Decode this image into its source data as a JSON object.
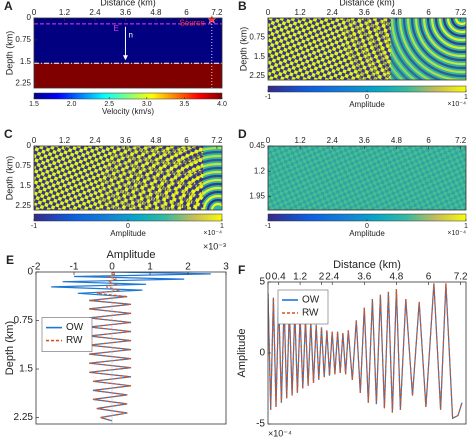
{
  "chart_data": [
    {
      "type": "heatmap",
      "panel_label": "A",
      "xlabel": "Distance (km)",
      "ylabel": "Depth (km)",
      "xlim": [
        0,
        7.4
      ],
      "xticks": [
        0,
        1.2,
        2.4,
        3.6,
        4.8,
        6,
        7.2
      ],
      "ylim": [
        0,
        2.4
      ],
      "yticks": [
        0,
        0.75,
        1.5,
        2.25
      ],
      "y_reversed": true,
      "layers": [
        {
          "top": 0,
          "bottom": 1.55,
          "velocity": 1.5
        },
        {
          "top": 1.55,
          "bottom": 2.4,
          "velocity": 4
        }
      ],
      "receiver_line_depth": 0.2,
      "receiver_line_label": "E",
      "normal_label": "n",
      "trace_x": 7.0,
      "source": {
        "label": "Source",
        "x": 7.0,
        "depth": 0.05
      },
      "colorbar": {
        "label": "Velocity (km/s)",
        "colormap": "jet",
        "clim": [
          1.5,
          4
        ],
        "ticks": [
          1.5,
          {
            "value": 2,
            "label": "2.0"
          },
          2.5,
          {
            "value": 3,
            "label": "3.0"
          },
          3.5,
          {
            "value": 4,
            "label": "4.0"
          }
        ]
      }
    },
    {
      "type": "wavefield",
      "panel_label": "B",
      "xlabel": "Distance (km)",
      "ylabel": "Depth (km)",
      "xlim": [
        0,
        7.4
      ],
      "xticks": [
        0,
        1.2,
        2.4,
        3.6,
        4.8,
        6,
        7.2
      ],
      "ylim": [
        0,
        2.4
      ],
      "yticks": [
        0.75,
        1.5,
        2.25
      ],
      "y_reversed": true,
      "colorbar": {
        "label": "Amplitude",
        "colormap": "parula",
        "clim": [
          -1,
          1
        ],
        "ticks": [
          -1,
          0,
          1
        ],
        "exponent_label": "×10⁻⁴"
      }
    },
    {
      "type": "wavefield",
      "panel_label": "C",
      "ylabel": "Depth (km)",
      "xlim": [
        0,
        7.4
      ],
      "xticks": [
        0,
        1.2,
        2.4,
        3.6,
        4.8,
        6,
        7.2
      ],
      "ylim": [
        0,
        2.4
      ],
      "yticks": [
        0,
        0.75,
        1.5,
        2.25
      ],
      "y_reversed": true,
      "colorbar": {
        "label": "Amplitude",
        "colormap": "parula",
        "clim": [
          -1,
          1
        ],
        "ticks": [
          -1,
          0,
          1
        ],
        "exponent_label": "×10⁻⁴"
      }
    },
    {
      "type": "wavefield",
      "panel_label": "D",
      "xlim": [
        0,
        7.4
      ],
      "xticks": [
        0,
        1.2,
        2.4,
        3.6,
        4.8,
        6,
        7.2
      ],
      "ylim": [
        0.45,
        2.35
      ],
      "yticks": [
        0.45,
        1.2,
        1.95
      ],
      "y_reversed": true,
      "colorbar": {
        "label": "Amplitude",
        "colormap": "parula",
        "clim": [
          -1,
          1
        ],
        "ticks": [
          -1,
          0,
          1
        ],
        "exponent_label": "×10⁻⁴"
      }
    },
    {
      "type": "depth_line",
      "panel_label": "E",
      "xlabel": "Amplitude",
      "ylabel": "Depth (km)",
      "exponent_label": "×10⁻³",
      "xlim": [
        -2,
        3
      ],
      "xticks": [
        -2,
        -1,
        0,
        1,
        2,
        3
      ],
      "ylim": [
        0,
        2.35
      ],
      "yticks": [
        0,
        0.75,
        1.5,
        2.25
      ],
      "y_reversed": true,
      "legend": "center left",
      "y": [
        0,
        0.03,
        0.07,
        0.11,
        0.15,
        0.19,
        0.23,
        0.28,
        0.33,
        0.38,
        0.44,
        0.5,
        0.57,
        0.64,
        0.71,
        0.78,
        0.85,
        0.92,
        0.99,
        1.06,
        1.13,
        1.2,
        1.27,
        1.34,
        1.41,
        1.48,
        1.55,
        1.62,
        1.69,
        1.76,
        1.83,
        1.9,
        1.97,
        2.04,
        2.11,
        2.18,
        2.25,
        2.3
      ],
      "series": [
        {
          "name": "OW",
          "color": "#1f77d4",
          "linestyle": "solid",
          "values": [
            0,
            2.6,
            -1.0,
            1.9,
            -1.3,
            0.9,
            -1.6,
            0.8,
            -0.9,
            0.4,
            -0.6,
            0.5,
            -0.6,
            0.5,
            -0.6,
            0.5,
            -0.6,
            0.5,
            -0.6,
            0.5,
            -0.6,
            0.5,
            -0.6,
            0.5,
            -0.6,
            0.5,
            -0.6,
            0.5,
            -0.5,
            0.5,
            -0.5,
            0.4,
            -0.5,
            0.4,
            -0.4,
            0.4,
            -0.3,
            0.0
          ]
        },
        {
          "name": "RW",
          "color": "#d9541a",
          "linestyle": "dashed",
          "values": [
            0,
            0.1,
            -0.1,
            0.1,
            -0.1,
            0.1,
            -0.15,
            0.2,
            -0.4,
            0.4,
            -0.6,
            0.5,
            -0.6,
            0.5,
            -0.6,
            0.5,
            -0.6,
            0.5,
            -0.6,
            0.5,
            -0.6,
            0.5,
            -0.6,
            0.5,
            -0.6,
            0.5,
            -0.6,
            0.5,
            -0.5,
            0.5,
            -0.5,
            0.4,
            -0.5,
            0.4,
            -0.4,
            0.4,
            -0.3,
            0.0
          ]
        }
      ]
    },
    {
      "type": "line",
      "panel_label": "F",
      "xlabel": "Distance (km)",
      "ylabel": "Amplitude",
      "exponent_label": "×10⁻⁴",
      "xlim": [
        0,
        7.4
      ],
      "xticks": [
        0,
        0.4,
        1.2,
        2,
        2.4,
        3.6,
        4.8,
        6,
        7.2
      ],
      "ylim": [
        -5,
        5
      ],
      "yticks": [
        -5,
        0,
        5
      ],
      "legend": "upper left",
      "x": [
        0,
        0.1,
        0.2,
        0.3,
        0.4,
        0.5,
        0.6,
        0.7,
        0.8,
        0.9,
        1.0,
        1.1,
        1.2,
        1.3,
        1.4,
        1.5,
        1.6,
        1.7,
        1.8,
        1.9,
        2.0,
        2.1,
        2.2,
        2.3,
        2.4,
        2.5,
        2.6,
        2.7,
        2.8,
        2.9,
        3.0,
        3.15,
        3.3,
        3.45,
        3.6,
        3.75,
        3.9,
        4.05,
        4.2,
        4.35,
        4.5,
        4.65,
        4.8,
        4.95,
        5.15,
        5.4,
        5.65,
        5.9,
        6.2,
        6.45,
        6.65,
        6.9,
        7.1,
        7.25
      ],
      "series": [
        {
          "name": "OW",
          "color": "#1f77d4",
          "linestyle": "solid",
          "values": [
            4.2,
            -4.0,
            3.9,
            -3.8,
            3.7,
            -3.5,
            3.4,
            -3.2,
            3.1,
            -3.0,
            2.9,
            -2.8,
            2.6,
            -2.5,
            2.4,
            -2.3,
            2.2,
            -2.1,
            2.0,
            -1.9,
            1.8,
            -1.7,
            1.6,
            -1.6,
            1.5,
            -1.5,
            1.5,
            -1.4,
            1.4,
            -1.5,
            1.6,
            -1.9,
            2.3,
            -2.8,
            3.2,
            -3.5,
            3.8,
            -3.6,
            4.1,
            -3.9,
            4.3,
            -4.2,
            4.5,
            -4.0,
            3.8,
            -3.0,
            3.6,
            -3.8,
            4.9,
            -4.0,
            4.9,
            -4.6,
            -4.4,
            -3.5
          ]
        },
        {
          "name": "RW",
          "color": "#d9541a",
          "linestyle": "dashed",
          "values": [
            4.2,
            -4.0,
            3.9,
            -3.8,
            3.7,
            -3.5,
            3.4,
            -3.2,
            3.1,
            -3.0,
            2.9,
            -2.8,
            2.6,
            -2.5,
            2.4,
            -2.3,
            2.2,
            -2.1,
            2.0,
            -1.9,
            1.8,
            -1.7,
            1.6,
            -1.6,
            1.5,
            -1.5,
            1.5,
            -1.4,
            1.4,
            -1.5,
            1.6,
            -1.9,
            2.3,
            -2.8,
            3.2,
            -3.5,
            3.8,
            -3.6,
            4.1,
            -3.9,
            4.3,
            -4.2,
            4.5,
            -4.0,
            3.8,
            -3.0,
            3.6,
            -3.8,
            4.9,
            -4.0,
            4.9,
            -4.6,
            -4.4,
            -3.5
          ]
        }
      ]
    }
  ]
}
